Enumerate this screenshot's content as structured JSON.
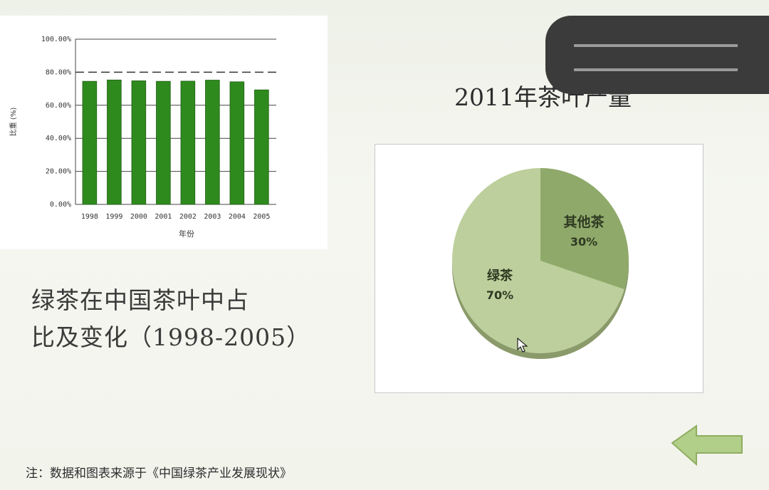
{
  "chart_data": [
    {
      "type": "bar",
      "categories": [
        "1998",
        "1999",
        "2000",
        "2001",
        "2002",
        "2003",
        "2004",
        "2005"
      ],
      "values": [
        74.5,
        75.3,
        74.8,
        74.5,
        74.6,
        75.2,
        74.2,
        69.3
      ],
      "ylim": [
        0,
        100
      ],
      "yticks": [
        "0.00%",
        "20.00%",
        "40.00%",
        "60.00%",
        "80.00%",
        "100.00%"
      ],
      "ytick_values": [
        0,
        20,
        40,
        60,
        80,
        100
      ],
      "reference_line": 80,
      "ylabel": "比重 (%)",
      "xlabel": "年份",
      "bar_color": "#2f8a1e",
      "grid": true
    },
    {
      "type": "pie",
      "title": "2011年茶叶产量",
      "labels": [
        "其他茶",
        "绿茶"
      ],
      "values": [
        30,
        70
      ],
      "value_labels": [
        "30%",
        "70%"
      ],
      "colors": [
        "#8fa96a",
        "#bdcf9c"
      ]
    }
  ],
  "caption": {
    "line1": "绿茶在中国茶叶中占",
    "line2": "比及变化（1998-2005）"
  },
  "footnote": "注：数据和图表来源于《中国绿茶产业发展现状》",
  "icons": {
    "back": "back-arrow-icon",
    "cursor": "mouse-cursor-icon"
  }
}
